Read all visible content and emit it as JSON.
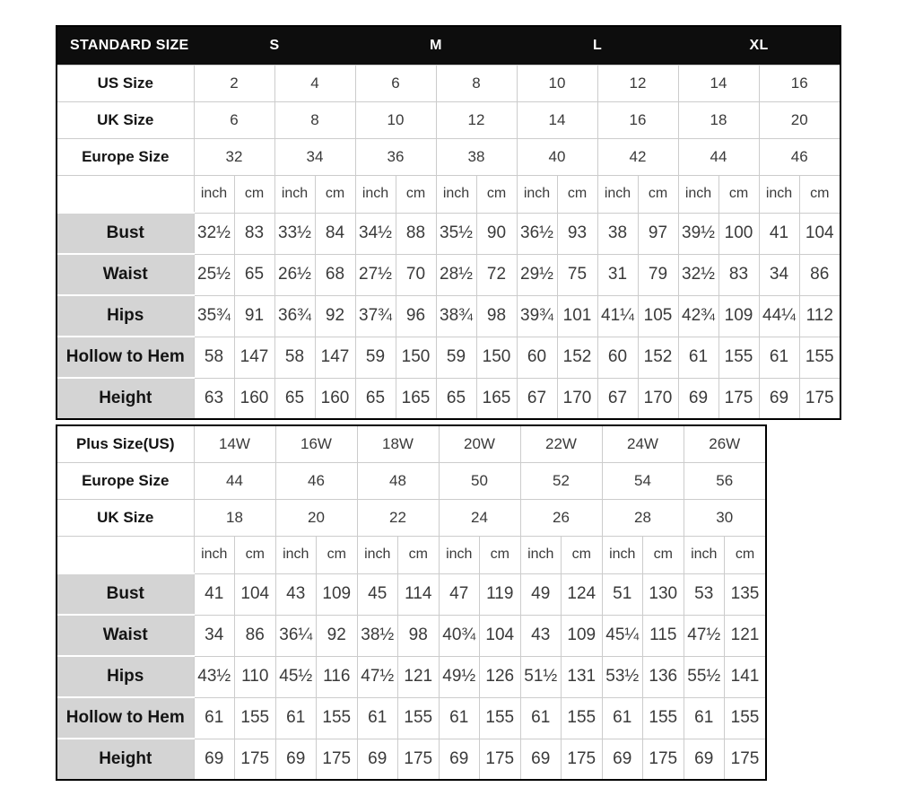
{
  "colors": {
    "header_bg": "#0d0d0d",
    "header_text": "#ffffff",
    "label_cell_bg": "#d4d4d4",
    "grid_line": "#cccccc",
    "outer_border": "#000000",
    "data_text": "#3a3a3a"
  },
  "standard_table": {
    "title": "STANDARD SIZE",
    "groups": [
      "S",
      "M",
      "L",
      "XL"
    ],
    "group_span": 4,
    "size_rows": [
      {
        "label": "US Size",
        "values": [
          "2",
          "4",
          "6",
          "8",
          "10",
          "12",
          "14",
          "16"
        ]
      },
      {
        "label": "UK Size",
        "values": [
          "6",
          "8",
          "10",
          "12",
          "14",
          "16",
          "18",
          "20"
        ]
      },
      {
        "label": "Europe Size",
        "values": [
          "32",
          "34",
          "36",
          "38",
          "40",
          "42",
          "44",
          "46"
        ]
      }
    ],
    "unit_row": {
      "label": "",
      "units": [
        "inch",
        "cm",
        "inch",
        "cm",
        "inch",
        "cm",
        "inch",
        "cm",
        "inch",
        "cm",
        "inch",
        "cm",
        "inch",
        "cm",
        "inch",
        "cm"
      ]
    },
    "measure_rows": [
      {
        "label": "Bust",
        "values": [
          "32½",
          "83",
          "33½",
          "84",
          "34½",
          "88",
          "35½",
          "90",
          "36½",
          "93",
          "38",
          "97",
          "39½",
          "100",
          "41",
          "104"
        ]
      },
      {
        "label": "Waist",
        "values": [
          "25½",
          "65",
          "26½",
          "68",
          "27½",
          "70",
          "28½",
          "72",
          "29½",
          "75",
          "31",
          "79",
          "32½",
          "83",
          "34",
          "86"
        ]
      },
      {
        "label": "Hips",
        "values": [
          "35¾",
          "91",
          "36¾",
          "92",
          "37¾",
          "96",
          "38¾",
          "98",
          "39¾",
          "101",
          "41¼",
          "105",
          "42¾",
          "109",
          "44¼",
          "112"
        ]
      },
      {
        "label": "Hollow to Hem",
        "values": [
          "58",
          "147",
          "58",
          "147",
          "59",
          "150",
          "59",
          "150",
          "60",
          "152",
          "60",
          "152",
          "61",
          "155",
          "61",
          "155"
        ]
      },
      {
        "label": "Height",
        "values": [
          "63",
          "160",
          "65",
          "160",
          "65",
          "165",
          "65",
          "165",
          "67",
          "170",
          "67",
          "170",
          "69",
          "175",
          "69",
          "175"
        ]
      }
    ]
  },
  "plus_table": {
    "size_rows": [
      {
        "label": "Plus Size(US)",
        "values": [
          "14W",
          "16W",
          "18W",
          "20W",
          "22W",
          "24W",
          "26W"
        ]
      },
      {
        "label": "Europe Size",
        "values": [
          "44",
          "46",
          "48",
          "50",
          "52",
          "54",
          "56"
        ]
      },
      {
        "label": "UK Size",
        "values": [
          "18",
          "20",
          "22",
          "24",
          "26",
          "28",
          "30"
        ]
      }
    ],
    "unit_row": {
      "label": "",
      "units": [
        "inch",
        "cm",
        "inch",
        "cm",
        "inch",
        "cm",
        "inch",
        "cm",
        "inch",
        "cm",
        "inch",
        "cm",
        "inch",
        "cm"
      ]
    },
    "measure_rows": [
      {
        "label": "Bust",
        "values": [
          "41",
          "104",
          "43",
          "109",
          "45",
          "114",
          "47",
          "119",
          "49",
          "124",
          "51",
          "130",
          "53",
          "135"
        ]
      },
      {
        "label": "Waist",
        "values": [
          "34",
          "86",
          "36¼",
          "92",
          "38½",
          "98",
          "40¾",
          "104",
          "43",
          "109",
          "45¼",
          "115",
          "47½",
          "121"
        ]
      },
      {
        "label": "Hips",
        "values": [
          "43½",
          "110",
          "45½",
          "116",
          "47½",
          "121",
          "49½",
          "126",
          "51½",
          "131",
          "53½",
          "136",
          "55½",
          "141"
        ]
      },
      {
        "label": "Hollow to Hem",
        "values": [
          "61",
          "155",
          "61",
          "155",
          "61",
          "155",
          "61",
          "155",
          "61",
          "155",
          "61",
          "155",
          "61",
          "155"
        ]
      },
      {
        "label": "Height",
        "values": [
          "69",
          "175",
          "69",
          "175",
          "69",
          "175",
          "69",
          "175",
          "69",
          "175",
          "69",
          "175",
          "69",
          "175"
        ]
      }
    ]
  }
}
